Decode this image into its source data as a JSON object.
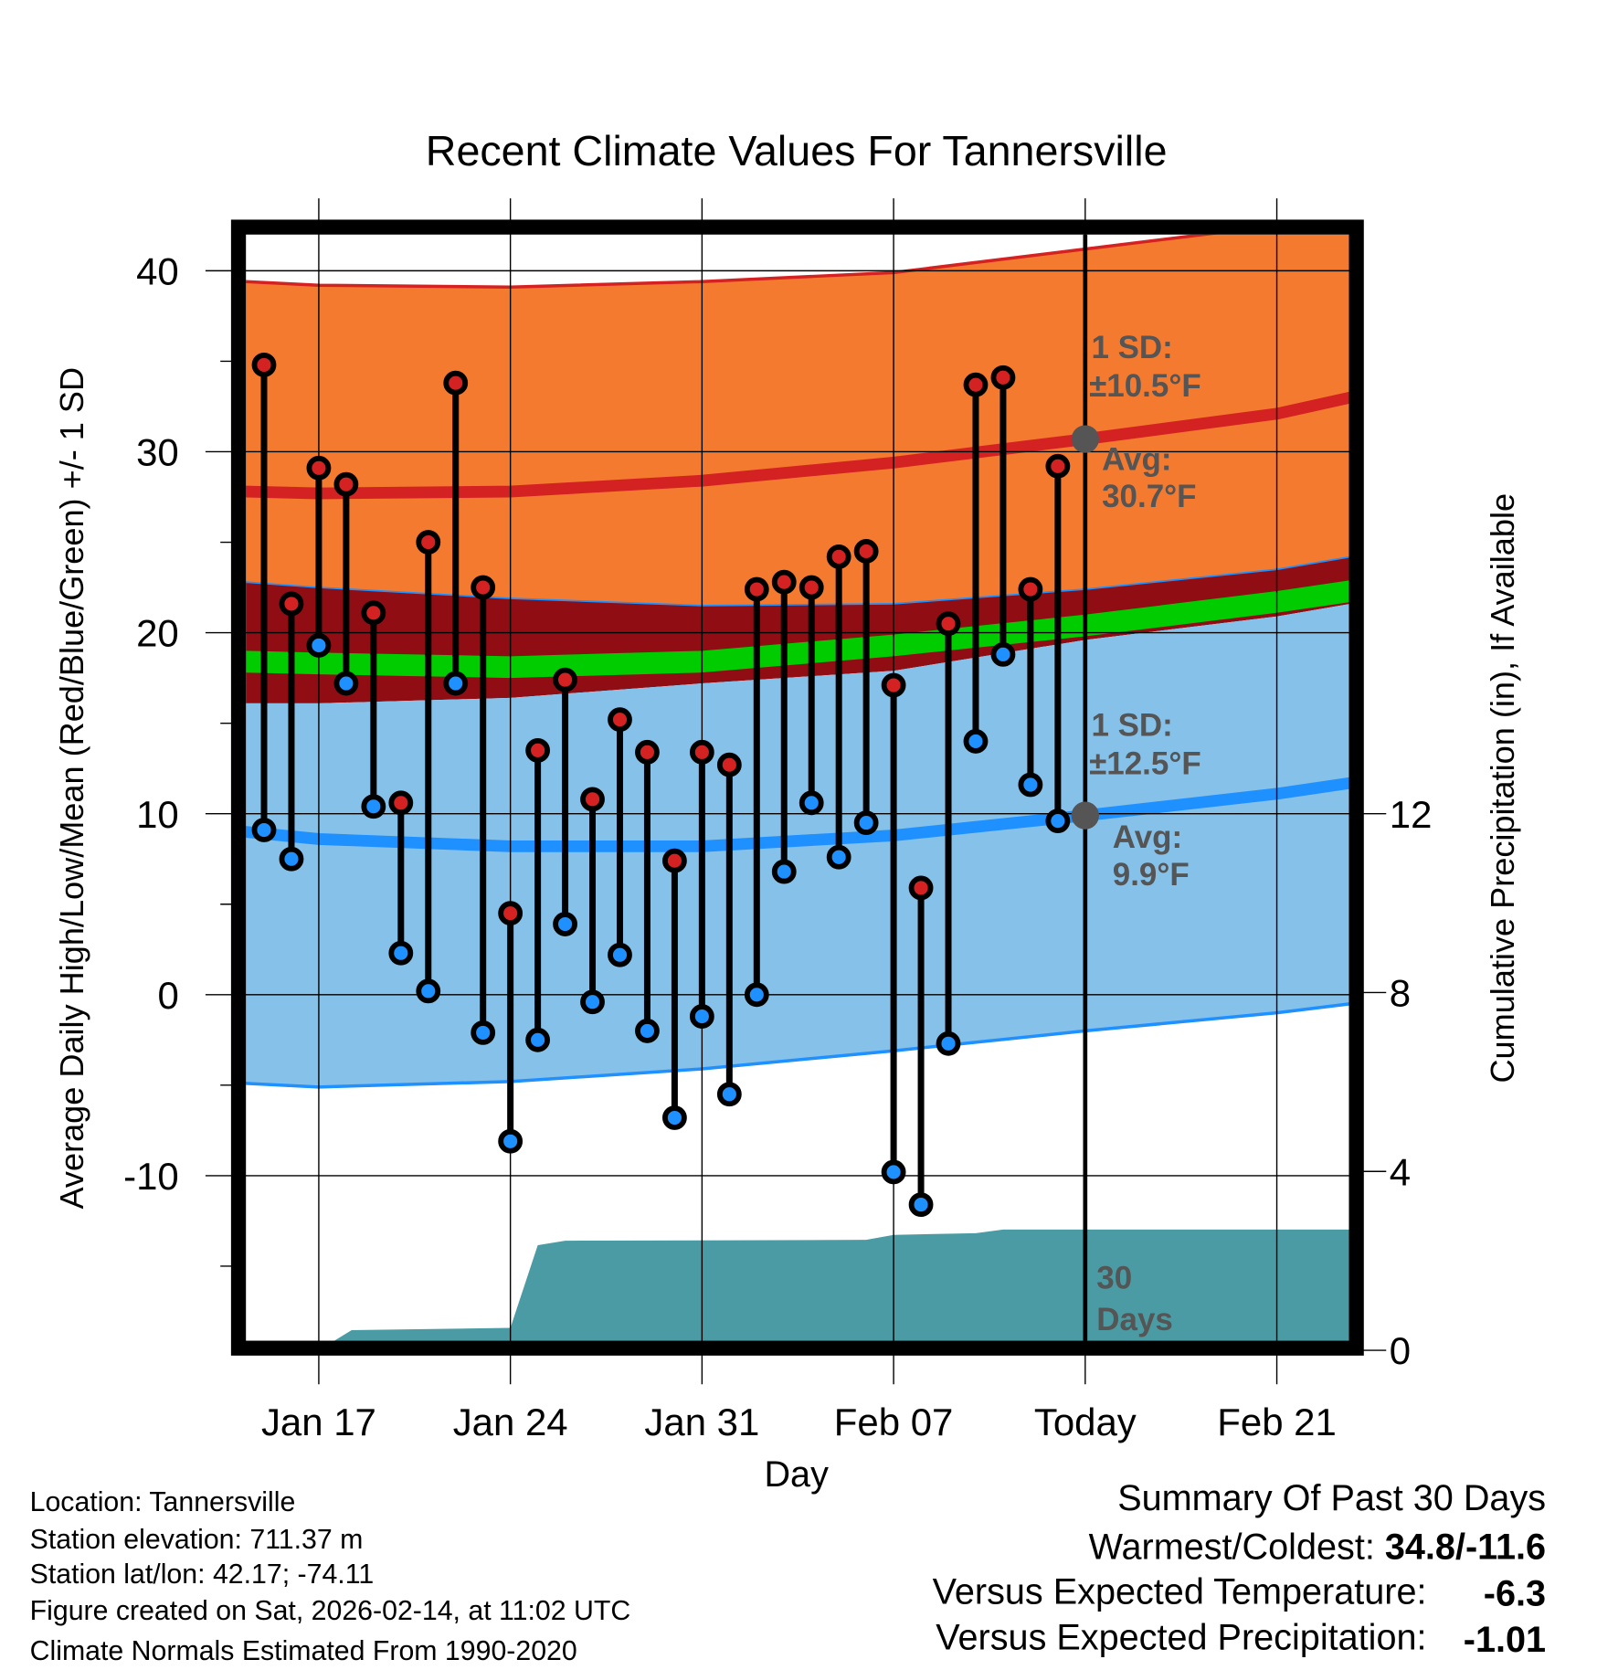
{
  "chart_data": {
    "type": "line",
    "title": "Recent Climate Values For Tannersville",
    "xlabel": "Day",
    "ylabel": "Average Daily High/Low/Mean (Red/Blue/Green) +/- 1 SD",
    "y2label": "Cumulative Precipitation (in), If Available",
    "ylim": [
      -19,
      42
    ],
    "y2lim": [
      0,
      14.5
    ],
    "x_origin": "Jan 15",
    "yticks": [
      -10,
      0,
      10,
      20,
      30,
      40
    ],
    "y2ticks": [
      0,
      4,
      8,
      12
    ],
    "xticks": [
      {
        "day": 2,
        "label": "Jan 17"
      },
      {
        "day": 9,
        "label": "Jan 24"
      },
      {
        "day": 16,
        "label": "Jan 31"
      },
      {
        "day": 23,
        "label": "Feb 07"
      },
      {
        "day": 30,
        "label": "Today"
      },
      {
        "day": 37,
        "label": "Feb 21"
      }
    ],
    "today_day": 30,
    "daily": {
      "high": [
        34.8,
        21.6,
        29.1,
        28.2,
        21.1,
        10.6,
        25.0,
        33.8,
        22.5,
        4.5,
        13.5,
        17.4,
        10.8,
        15.2,
        13.4,
        7.4,
        13.4,
        12.7,
        22.4,
        22.8,
        22.5,
        24.2,
        24.5,
        17.1,
        5.9,
        20.5,
        33.7,
        34.1,
        22.4,
        29.2
      ],
      "low": [
        9.1,
        7.5,
        19.3,
        17.2,
        10.4,
        2.3,
        0.2,
        17.2,
        -2.1,
        -8.1,
        -2.5,
        3.9,
        -0.4,
        2.2,
        -2.0,
        -6.8,
        -1.2,
        -5.5,
        0.0,
        6.8,
        10.6,
        7.6,
        9.5,
        -9.8,
        -11.6,
        -2.7,
        14.0,
        18.8,
        11.6,
        9.6
      ]
    },
    "normals": {
      "days": [
        -0.7,
        2,
        9,
        16,
        23,
        30,
        37,
        39.7
      ],
      "high_upper": [
        39.4,
        39.2,
        39.1,
        39.4,
        39.9,
        41.2,
        42.5,
        43.2
      ],
      "high_avg": [
        27.8,
        27.7,
        27.8,
        28.4,
        29.4,
        30.7,
        32.1,
        33.0
      ],
      "high_lower": [
        22.8,
        22.5,
        21.9,
        21.5,
        21.6,
        22.4,
        23.5,
        24.2
      ],
      "mean": [
        18.4,
        18.3,
        18.1,
        18.4,
        19.3,
        20.4,
        21.7,
        22.3
      ],
      "low_upper": [
        16.1,
        16.1,
        16.4,
        17.2,
        17.9,
        19.6,
        20.9,
        21.6
      ],
      "low_avg": [
        9.0,
        8.6,
        8.2,
        8.2,
        8.8,
        9.9,
        11.1,
        11.7
      ],
      "low_lower": [
        -4.9,
        -5.1,
        -4.8,
        -4.1,
        -3.1,
        -2.0,
        -1.0,
        -0.5
      ]
    },
    "precip": {
      "days": [
        2,
        3.2,
        9,
        10,
        11,
        22,
        23,
        26,
        27,
        39.7
      ],
      "values": [
        0,
        0.45,
        0.5,
        2.35,
        2.45,
        2.47,
        2.58,
        2.62,
        2.7,
        2.7
      ]
    },
    "annotations": {
      "high_sd_line1": "1 SD:",
      "high_sd_line2": "±10.5°F",
      "high_avg_line1": "Avg:",
      "high_avg_line2": "30.7°F",
      "low_sd_line1": "1 SD:",
      "low_sd_line2": "±12.5°F",
      "low_avg_line1": "Avg:",
      "low_avg_line2": "9.9°F",
      "days_line1": "30",
      "days_line2": "Days"
    },
    "today_high_avg": 30.7,
    "today_low_avg": 9.9
  },
  "colors": {
    "orange": "#f47a30",
    "dark_red": "#8f0d13",
    "green": "#00cc00",
    "light_blue": "#85c1e8",
    "blue": "#1e90ff",
    "red": "#d42222",
    "teal": "#4a9ba3",
    "annotation_gray": "#555555",
    "temp_dev": "#1e90ff",
    "precip_dev": "#a0522d"
  },
  "footer": {
    "location": "Location: Tannersville",
    "elevation": "Station elevation: 711.37 m",
    "latlon": "Station lat/lon: 42.17; -74.11",
    "created": "Figure created on Sat, 2026-02-14, at 11:02 UTC",
    "normals": "Climate Normals Estimated From 1990-2020"
  },
  "summary": {
    "title": "Summary Of Past 30 Days",
    "warmest_label": "Warmest/Coldest: ",
    "warmest_value": "34.8/-11.6",
    "temp_label": "Versus Expected Temperature:",
    "temp_value": "-6.3",
    "precip_label": "Versus Expected Precipitation:",
    "precip_value": "-1.01"
  }
}
